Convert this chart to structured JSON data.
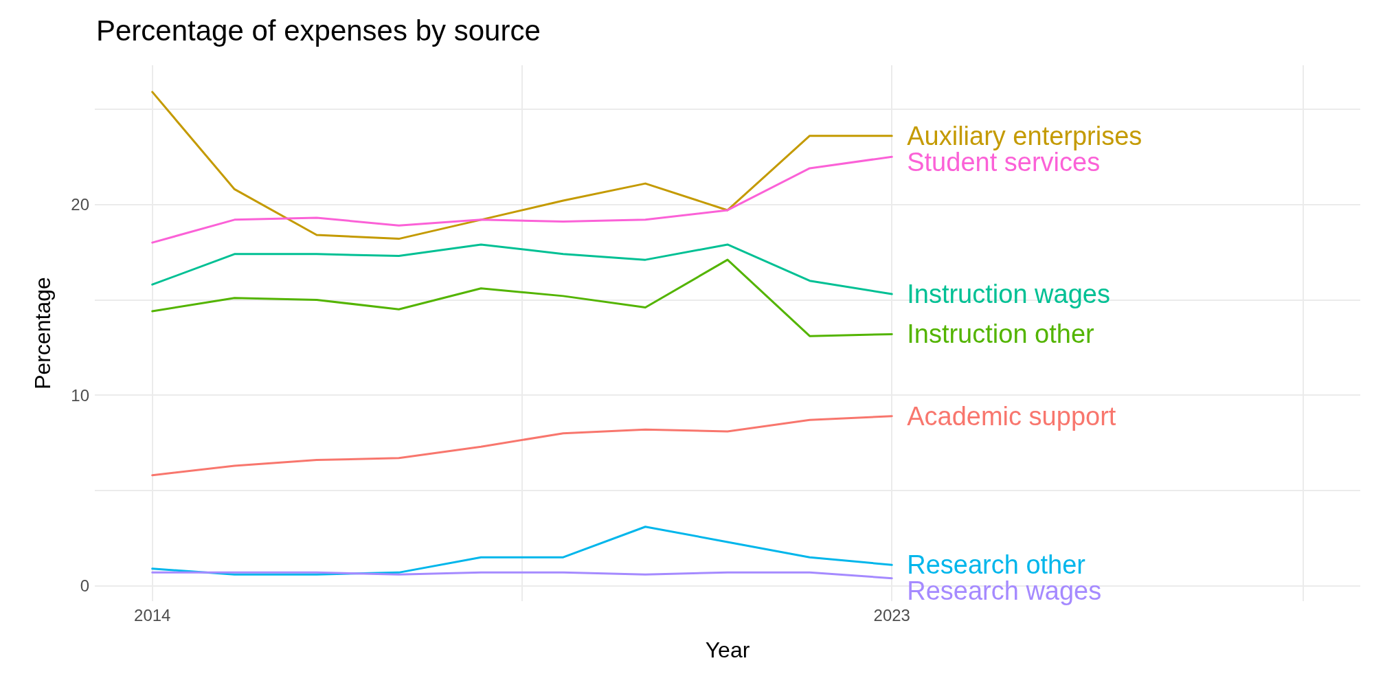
{
  "chart_data": {
    "type": "line",
    "title": "Percentage of expenses by source",
    "xlabel": "Year",
    "ylabel": "Percentage",
    "x": [
      2014,
      2015,
      2016,
      2017,
      2018,
      2019,
      2020,
      2021,
      2022,
      2023
    ],
    "xlim": [
      2013.3,
      2028.7
    ],
    "xticks": [
      2014,
      {
        "value": 2018.5,
        "label": null
      },
      2023,
      {
        "value": 2028,
        "label": null
      }
    ],
    "ylim": [
      -0.8,
      27.3
    ],
    "yticks": [
      0,
      {
        "value": 5,
        "label": null
      },
      10,
      {
        "value": 15,
        "label": null
      },
      20,
      {
        "value": 25,
        "label": null
      }
    ],
    "grid": true,
    "legend": false,
    "marker": "none",
    "line_style": "solid",
    "series": [
      {
        "name": "Auxiliary enterprises",
        "color": "#c49a00",
        "values": [
          25.9,
          20.8,
          18.4,
          18.2,
          19.2,
          20.2,
          21.1,
          19.7,
          23.6,
          23.6
        ]
      },
      {
        "name": "Student services",
        "color": "#fb61d7",
        "values": [
          18.0,
          19.2,
          19.3,
          18.9,
          19.2,
          19.1,
          19.2,
          19.7,
          21.9,
          22.5
        ]
      },
      {
        "name": "Instruction wages",
        "color": "#00c094",
        "values": [
          15.8,
          17.4,
          17.4,
          17.3,
          17.9,
          17.4,
          17.1,
          17.9,
          16.0,
          15.3
        ]
      },
      {
        "name": "Instruction other",
        "color": "#53b400",
        "values": [
          14.4,
          15.1,
          15.0,
          14.5,
          15.6,
          15.2,
          14.6,
          17.1,
          13.1,
          13.2
        ]
      },
      {
        "name": "Academic support",
        "color": "#f8766d",
        "values": [
          5.8,
          6.3,
          6.6,
          6.7,
          7.3,
          8.0,
          8.2,
          8.1,
          8.7,
          8.9
        ]
      },
      {
        "name": "Research other",
        "color": "#00b6eb",
        "values": [
          0.9,
          0.6,
          0.6,
          0.7,
          1.5,
          1.5,
          3.1,
          2.3,
          1.5,
          1.1
        ]
      },
      {
        "name": "Research wages",
        "color": "#a58aff",
        "values": [
          0.7,
          0.7,
          0.7,
          0.6,
          0.7,
          0.7,
          0.6,
          0.7,
          0.7,
          0.4
        ]
      }
    ]
  }
}
